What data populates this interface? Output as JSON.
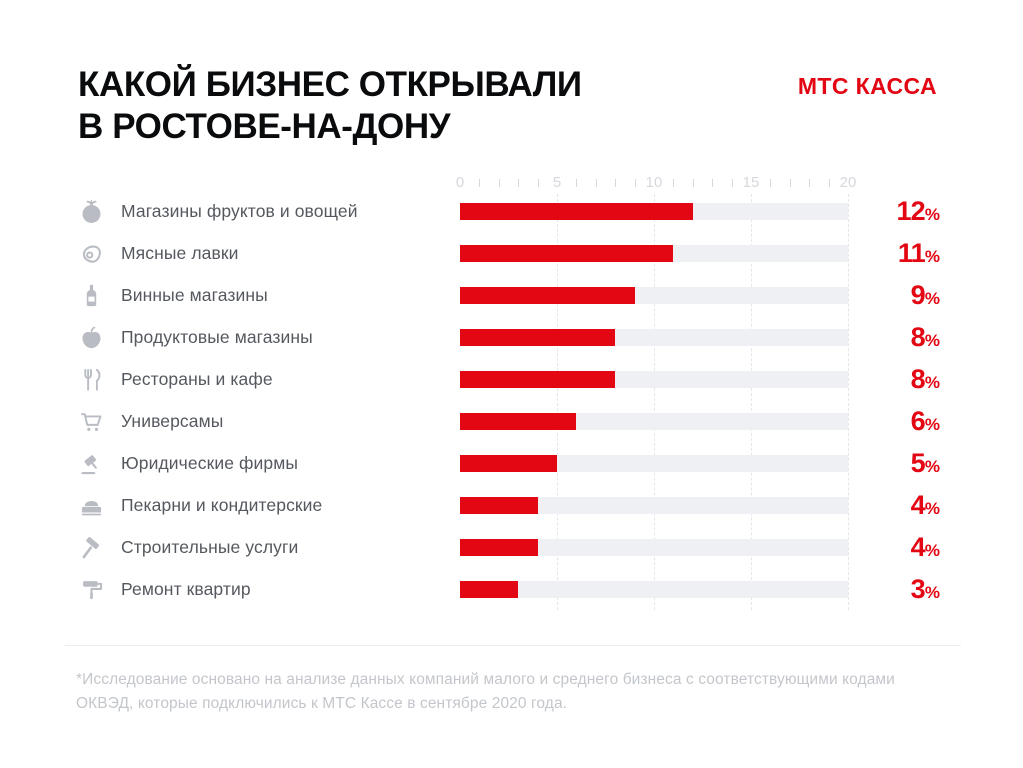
{
  "header": {
    "title_line1": "КАКОЙ БИЗНЕС ОТКРЫВАЛИ",
    "title_line2": "В РОСТОВЕ-НА-ДОНУ",
    "brand": "МТС КАССА"
  },
  "colors": {
    "accent_red": "#e30613",
    "bar_track": "#eef0f3",
    "icon_gray": "#b9bdc3",
    "label_gray": "#55595f",
    "axis_gray": "#d6d8dd",
    "footnote_gray": "#c3c6cb"
  },
  "chart_data": {
    "type": "bar",
    "orientation": "horizontal",
    "title": "КАКОЙ БИЗНЕС ОТКРЫВАЛИ В РОСТОВЕ-НА-ДОНУ",
    "unit": "%",
    "xlim": [
      0,
      20
    ],
    "x_ticks": [
      0,
      5,
      10,
      15,
      20
    ],
    "minor_tick_step": 1,
    "grid": "dashed vertical lines at major ticks",
    "legend": "none",
    "categories": [
      "Магазины фруктов и овощей",
      "Мясные лавки",
      "Винные магазины",
      "Продуктовые магазины",
      "Рестораны и кафе",
      "Универсамы",
      "Юридические фирмы",
      "Пекарни и кондитерские",
      "Строительные услуги",
      "Ремонт квартир"
    ],
    "values": [
      12,
      11,
      9,
      8,
      8,
      6,
      5,
      4,
      4,
      3
    ],
    "icons": [
      "tomato-icon",
      "meat-icon",
      "wine-bottle-icon",
      "apple-icon",
      "cutlery-icon",
      "cart-icon",
      "gavel-icon",
      "cake-icon",
      "hammer-icon",
      "paint-roller-icon"
    ]
  },
  "footnote": "*Исследование основано на анализе данных компаний малого и среднего бизнеса с соответствующими кодами ОКВЭД, которые подключились к МТС Кассе в сентябре 2020 года."
}
